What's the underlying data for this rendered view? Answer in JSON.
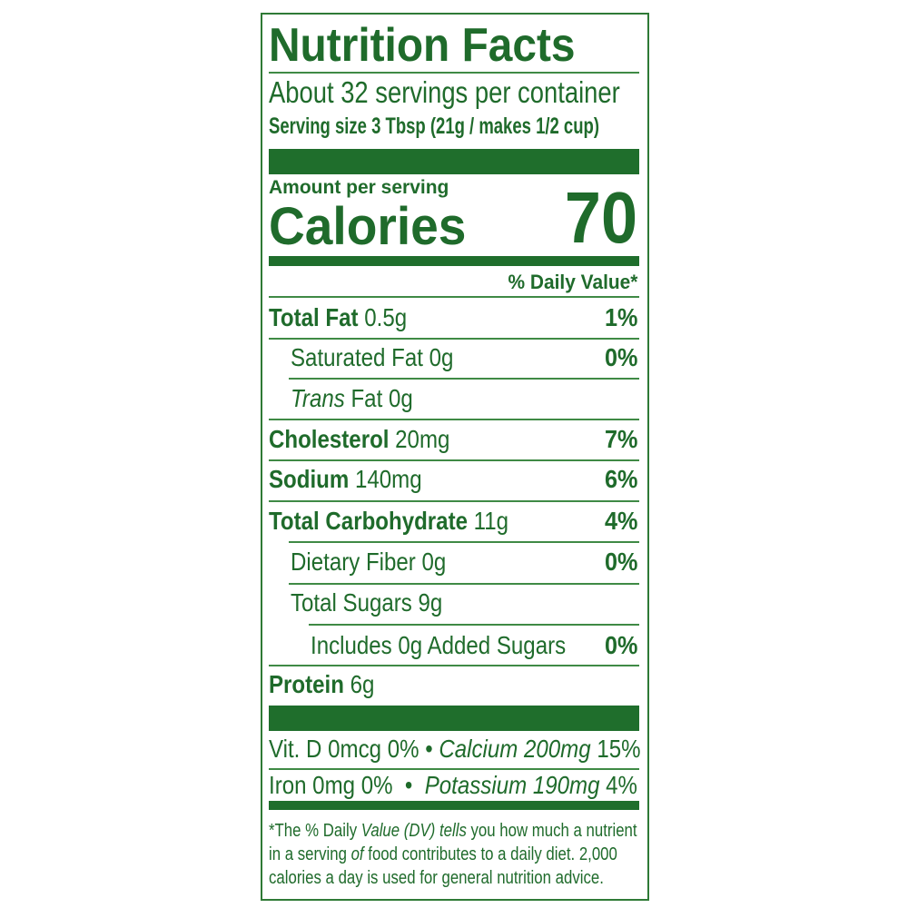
{
  "label": {
    "title": "Nutrition Facts",
    "servings": "About 32 servings per container",
    "serving_size": "Serving size 3 Tbsp (21g / makes 1/2 cup)",
    "amount_per_serving": "Amount per serving",
    "calories_label": "Calories",
    "calories_value": "70",
    "dv_header": "% Daily Value*",
    "color": "#1f6e2c"
  },
  "nutrients": [
    {
      "name": "Total Fat",
      "amount": "0.5g",
      "dv": "1%"
    },
    {
      "name": "Saturated Fat",
      "amount": "0g",
      "dv": "0%"
    },
    {
      "name": "Trans",
      "name_rest": "Fat",
      "amount": "0g",
      "dv": ""
    },
    {
      "name": "Cholesterol",
      "amount": "20mg",
      "dv": "7%"
    },
    {
      "name": "Sodium",
      "amount": "140mg",
      "dv": "6%"
    },
    {
      "name": "Total Carbohydrate",
      "amount": "11g",
      "dv": "4%"
    },
    {
      "name": "Dietary Fiber",
      "amount": "0g",
      "dv": "0%"
    },
    {
      "name": "Total Sugars",
      "amount": "9g",
      "dv": ""
    },
    {
      "name": "Includes 0g Added Sugars",
      "amount": "",
      "dv": "0%"
    },
    {
      "name": "Protein",
      "amount": "6g",
      "dv": ""
    }
  ],
  "vitamins": [
    {
      "left": "Vit. D 0mcg 0%",
      "sep": "•",
      "right": "Calcium 200mg",
      "right_dv": "15%"
    },
    {
      "left": "Iron 0mg 0%",
      "sep": "•",
      "right": "Potassium 190mg",
      "right_dv": "4%"
    }
  ],
  "footnote": {
    "p1": "*The % Daily ",
    "p2": "Value (DV) tells",
    "p3": " you how much a nutrient",
    "p4": "in a serving ",
    "p5": "of",
    "p6": " food contributes to a daily diet. 2,000",
    "p7": "calories a day is used for general nutrition advice."
  }
}
